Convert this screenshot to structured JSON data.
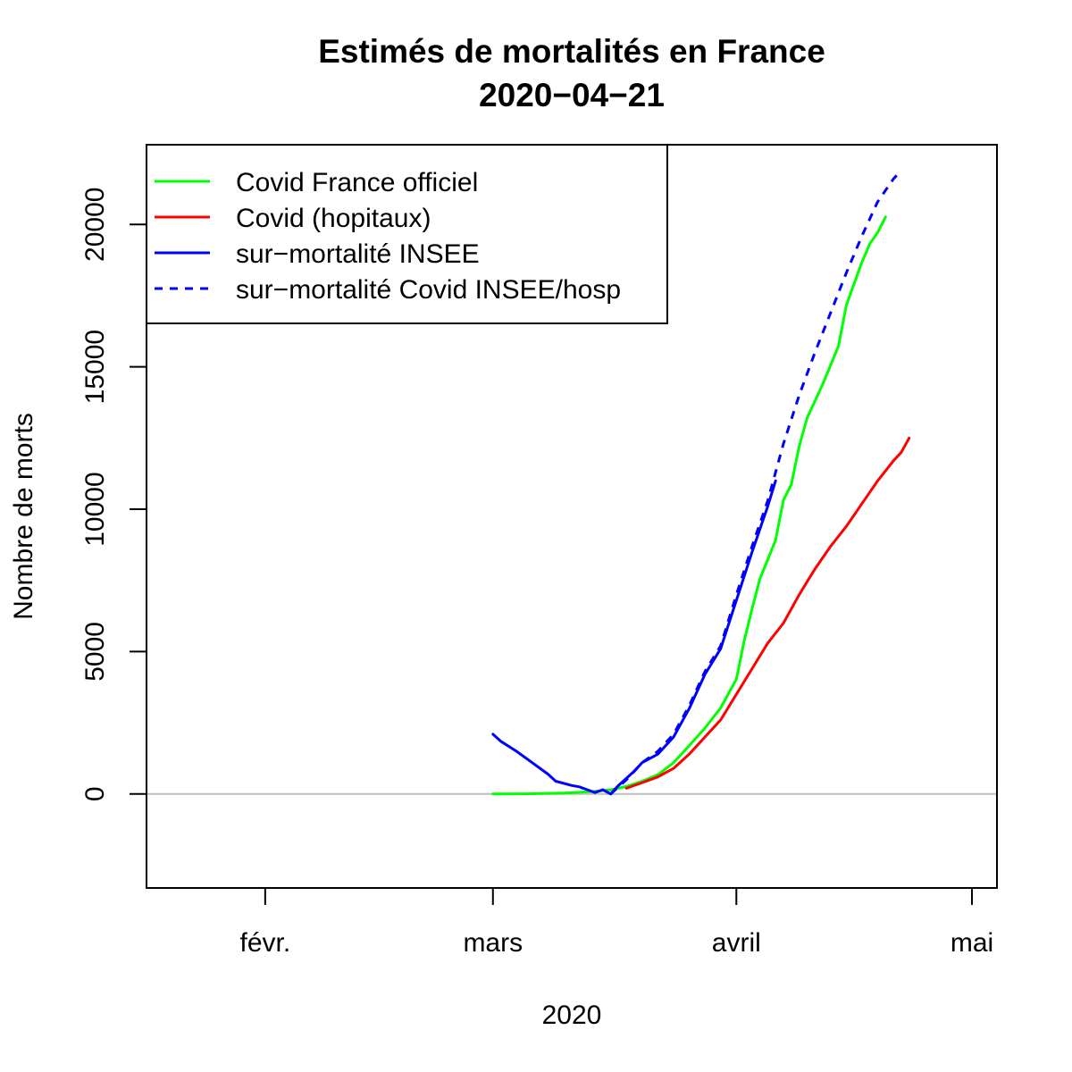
{
  "chart_data": {
    "type": "line",
    "title": "Estimés de mortalités en France",
    "subtitle": "2020−04−21",
    "xlabel": "2020",
    "ylabel": "Nombre de morts",
    "x_range": [
      "2020-01-17",
      "2020-05-01"
    ],
    "ylim": [
      -3300,
      22800
    ],
    "x_ticks": [
      {
        "date": "2020-02-01",
        "label": "févr."
      },
      {
        "date": "2020-03-01",
        "label": "mars"
      },
      {
        "date": "2020-04-01",
        "label": "avril"
      },
      {
        "date": "2020-05-01",
        "label": "mai"
      }
    ],
    "y_ticks": [
      {
        "value": 0,
        "label": "0"
      },
      {
        "value": 5000,
        "label": "5000"
      },
      {
        "value": 10000,
        "label": "10000"
      },
      {
        "value": 15000,
        "label": "15000"
      },
      {
        "value": 20000,
        "label": "20000"
      }
    ],
    "reference_line": {
      "y": 0,
      "color": "#bebebe"
    },
    "legend_position": "top-left",
    "series": [
      {
        "name": "Covid France officiel",
        "color": "#00ff00",
        "dash": "solid",
        "points": [
          [
            "2020-03-01",
            2
          ],
          [
            "2020-03-05",
            6
          ],
          [
            "2020-03-10",
            33
          ],
          [
            "2020-03-12",
            61
          ],
          [
            "2020-03-14",
            91
          ],
          [
            "2020-03-16",
            148
          ],
          [
            "2020-03-18",
            264
          ],
          [
            "2020-03-20",
            450
          ],
          [
            "2020-03-22",
            674
          ],
          [
            "2020-03-24",
            1100
          ],
          [
            "2020-03-26",
            1696
          ],
          [
            "2020-03-28",
            2314
          ],
          [
            "2020-03-30",
            3024
          ],
          [
            "2020-04-01",
            4032
          ],
          [
            "2020-04-02",
            5387
          ],
          [
            "2020-04-03",
            6507
          ],
          [
            "2020-04-04",
            7560
          ],
          [
            "2020-04-06",
            8911
          ],
          [
            "2020-04-07",
            10328
          ],
          [
            "2020-04-08",
            10869
          ],
          [
            "2020-04-09",
            12210
          ],
          [
            "2020-04-10",
            13197
          ],
          [
            "2020-04-12",
            14393
          ],
          [
            "2020-04-14",
            15729
          ],
          [
            "2020-04-15",
            17167
          ],
          [
            "2020-04-16",
            17920
          ],
          [
            "2020-04-17",
            18681
          ],
          [
            "2020-04-18",
            19323
          ],
          [
            "2020-04-19",
            19718
          ],
          [
            "2020-04-20",
            20265
          ]
        ]
      },
      {
        "name": "Covid (hopitaux)",
        "color": "#ff0000",
        "dash": "solid",
        "points": [
          [
            "2020-03-18",
            200
          ],
          [
            "2020-03-20",
            400
          ],
          [
            "2020-03-22",
            600
          ],
          [
            "2020-03-24",
            900
          ],
          [
            "2020-03-26",
            1400
          ],
          [
            "2020-03-28",
            2000
          ],
          [
            "2020-03-30",
            2600
          ],
          [
            "2020-04-01",
            3500
          ],
          [
            "2020-04-03",
            4400
          ],
          [
            "2020-04-05",
            5300
          ],
          [
            "2020-04-07",
            6000
          ],
          [
            "2020-04-09",
            7000
          ],
          [
            "2020-04-11",
            7900
          ],
          [
            "2020-04-13",
            8700
          ],
          [
            "2020-04-15",
            9400
          ],
          [
            "2020-04-17",
            10200
          ],
          [
            "2020-04-19",
            11000
          ],
          [
            "2020-04-21",
            11700
          ],
          [
            "2020-04-22",
            12000
          ],
          [
            "2020-04-23",
            12500
          ]
        ]
      },
      {
        "name": "sur−mortalité INSEE",
        "color": "#0000ff",
        "dash": "solid",
        "points": [
          [
            "2020-03-01",
            2100
          ],
          [
            "2020-03-02",
            1850
          ],
          [
            "2020-03-04",
            1500
          ],
          [
            "2020-03-06",
            1100
          ],
          [
            "2020-03-08",
            700
          ],
          [
            "2020-03-09",
            450
          ],
          [
            "2020-03-11",
            300
          ],
          [
            "2020-03-12",
            250
          ],
          [
            "2020-03-13",
            150
          ],
          [
            "2020-03-14",
            50
          ],
          [
            "2020-03-15",
            150
          ],
          [
            "2020-03-16",
            0
          ],
          [
            "2020-03-17",
            300
          ],
          [
            "2020-03-19",
            800
          ],
          [
            "2020-03-20",
            1100
          ],
          [
            "2020-03-22",
            1400
          ],
          [
            "2020-03-24",
            2000
          ],
          [
            "2020-03-26",
            3000
          ],
          [
            "2020-03-28",
            4200
          ],
          [
            "2020-03-30",
            5100
          ],
          [
            "2020-04-01",
            6800
          ],
          [
            "2020-04-03",
            8500
          ],
          [
            "2020-04-05",
            10100
          ],
          [
            "2020-04-06",
            11000
          ]
        ]
      },
      {
        "name": "sur−mortalité Covid INSEE/hosp",
        "color": "#0000ff",
        "dash": "dashed",
        "points": [
          [
            "2020-03-16",
            0
          ],
          [
            "2020-03-18",
            500
          ],
          [
            "2020-03-20",
            1100
          ],
          [
            "2020-03-22",
            1500
          ],
          [
            "2020-03-24",
            2100
          ],
          [
            "2020-03-26",
            3100
          ],
          [
            "2020-03-28",
            4300
          ],
          [
            "2020-03-30",
            5200
          ],
          [
            "2020-04-01",
            7000
          ],
          [
            "2020-04-03",
            8700
          ],
          [
            "2020-04-05",
            10300
          ],
          [
            "2020-04-07",
            12300
          ],
          [
            "2020-04-09",
            14000
          ],
          [
            "2020-04-11",
            15500
          ],
          [
            "2020-04-13",
            16900
          ],
          [
            "2020-04-15",
            18300
          ],
          [
            "2020-04-17",
            19600
          ],
          [
            "2020-04-19",
            20800
          ],
          [
            "2020-04-21",
            21600
          ],
          [
            "2020-04-22",
            21900
          ]
        ]
      }
    ]
  }
}
